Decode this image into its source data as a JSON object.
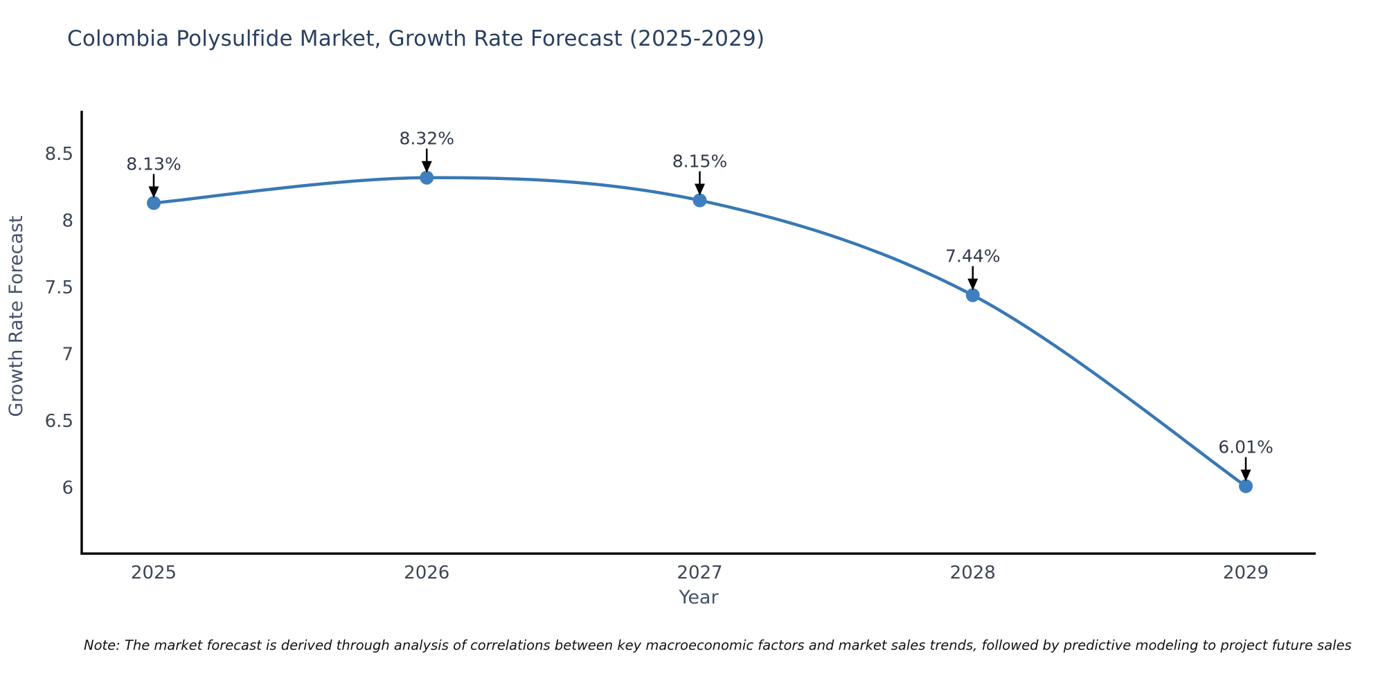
{
  "chart_data": {
    "type": "line",
    "title": "Colombia Polysulfide Market, Growth Rate Forecast (2025-2029)",
    "xlabel": "Year",
    "ylabel": "Growth Rate Forecast",
    "x": [
      2025,
      2026,
      2027,
      2028,
      2029
    ],
    "series": [
      {
        "name": "Growth Rate Forecast",
        "values": [
          8.13,
          8.32,
          8.15,
          7.44,
          6.01
        ]
      }
    ],
    "point_labels": [
      "8.13%",
      "8.32%",
      "8.15%",
      "7.44%",
      "6.01%"
    ],
    "xticks": [
      "2025",
      "2026",
      "2027",
      "2028",
      "2029"
    ],
    "yticks": [
      8.5,
      8.0,
      7.5,
      7.0,
      6.5,
      6.0
    ],
    "ylim": [
      5.5,
      8.83
    ],
    "grid": false,
    "legend_position": "none",
    "smooth": true,
    "colors": {
      "line": "#3878b4",
      "marker": "#3f7fbd",
      "axis": "#0a0a0a",
      "tick_label": "#3d4654",
      "axis_title": "#44516b",
      "annotation_text": "#32394a",
      "annotation_arrow": "#000000",
      "title": "#2a3f5f"
    }
  },
  "note": "Note: The market forecast is derived through analysis of correlations between key macroeconomic factors and market sales trends, followed by predictive modeling to project future sales"
}
